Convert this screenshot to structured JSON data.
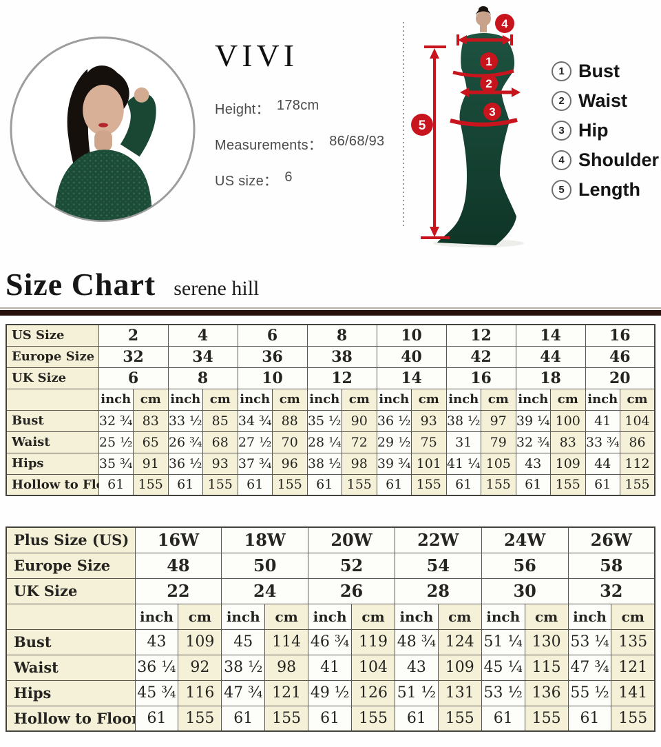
{
  "model_info": {
    "brand": "VIVI",
    "height_label": "Height：",
    "height_value": "178cm",
    "measurements_label": "Measurements：",
    "measurements_value": "86/68/93",
    "us_size_label": "US size：",
    "us_size_value": "6"
  },
  "figure": {
    "markers": {
      "bust": "1",
      "waist": "2",
      "hip": "3",
      "shoulder": "4",
      "length": "5"
    }
  },
  "measure_legend": {
    "items": [
      {
        "num": "1",
        "label": "Bust"
      },
      {
        "num": "2",
        "label": "Waist"
      },
      {
        "num": "3",
        "label": "Hip"
      },
      {
        "num": "4",
        "label": "Shoulder"
      },
      {
        "num": "5",
        "label": "Length"
      }
    ]
  },
  "heading": {
    "title": "Size Chart",
    "subtitle": "serene hill"
  },
  "colors": {
    "accent_red": "#c8151d",
    "dress_green": "#1c4c38",
    "table_cream": "#f4f1d8",
    "rule_brown": "#26120a"
  },
  "size_chart": {
    "units": {
      "inch": "inch",
      "cm": "cm"
    },
    "header_rows": [
      {
        "label": "US Size",
        "values": [
          "2",
          "4",
          "6",
          "8",
          "10",
          "12",
          "14",
          "16"
        ]
      },
      {
        "label": "Europe Size",
        "values": [
          "32",
          "34",
          "36",
          "38",
          "40",
          "42",
          "44",
          "46"
        ]
      },
      {
        "label": "UK Size",
        "values": [
          "6",
          "8",
          "10",
          "12",
          "14",
          "16",
          "18",
          "20"
        ]
      }
    ],
    "measure_rows": [
      {
        "label": "Bust",
        "inch": [
          "32 ¾",
          "33 ½",
          "34 ¾",
          "35 ½",
          "36 ½",
          "38 ½",
          "39 ¼",
          "41"
        ],
        "cm": [
          "83",
          "85",
          "88",
          "90",
          "93",
          "97",
          "100",
          "104"
        ]
      },
      {
        "label": "Waist",
        "inch": [
          "25 ½",
          "26 ¾",
          "27 ½",
          "28 ¼",
          "29 ½",
          "31",
          "32 ¾",
          "33 ¾"
        ],
        "cm": [
          "65",
          "68",
          "70",
          "72",
          "75",
          "79",
          "83",
          "86"
        ]
      },
      {
        "label": "Hips",
        "inch": [
          "35 ¾",
          "36 ½",
          "37 ¾",
          "38 ½",
          "39 ¾",
          "41 ¼",
          "43",
          "44"
        ],
        "cm": [
          "91",
          "93",
          "96",
          "98",
          "101",
          "105",
          "109",
          "112"
        ]
      },
      {
        "label": "Hollow to Floor",
        "inch": [
          "61",
          "61",
          "61",
          "61",
          "61",
          "61",
          "61",
          "61"
        ],
        "cm": [
          "155",
          "155",
          "155",
          "155",
          "155",
          "155",
          "155",
          "155"
        ]
      }
    ]
  },
  "plus_size_chart": {
    "units": {
      "inch": "inch",
      "cm": "cm"
    },
    "header_rows": [
      {
        "label": "Plus Size (US)",
        "values": [
          "16W",
          "18W",
          "20W",
          "22W",
          "24W",
          "26W"
        ]
      },
      {
        "label": "Europe Size",
        "values": [
          "48",
          "50",
          "52",
          "54",
          "56",
          "58"
        ]
      },
      {
        "label": "UK Size",
        "values": [
          "22",
          "24",
          "26",
          "28",
          "30",
          "32"
        ]
      }
    ],
    "measure_rows": [
      {
        "label": "Bust",
        "inch": [
          "43",
          "45",
          "46 ¾",
          "48 ¾",
          "51 ¼",
          "53 ¼"
        ],
        "cm": [
          "109",
          "114",
          "119",
          "124",
          "130",
          "135"
        ]
      },
      {
        "label": "Waist",
        "inch": [
          "36 ¼",
          "38 ½",
          "41",
          "43",
          "45 ¼",
          "47 ¾"
        ],
        "cm": [
          "92",
          "98",
          "104",
          "109",
          "115",
          "121"
        ]
      },
      {
        "label": "Hips",
        "inch": [
          "45 ¾",
          "47 ¾",
          "49 ½",
          "51 ½",
          "53 ½",
          "55 ½"
        ],
        "cm": [
          "116",
          "121",
          "126",
          "131",
          "136",
          "141"
        ]
      },
      {
        "label": "Hollow to Floor",
        "inch": [
          "61",
          "61",
          "61",
          "61",
          "61",
          "61"
        ],
        "cm": [
          "155",
          "155",
          "155",
          "155",
          "155",
          "155"
        ]
      }
    ]
  }
}
